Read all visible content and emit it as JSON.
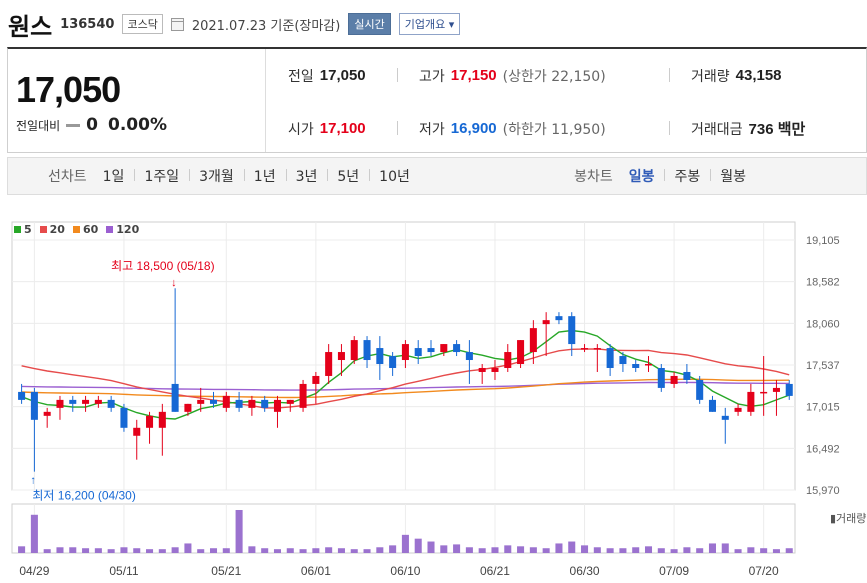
{
  "header": {
    "name": "원스",
    "code": "136540",
    "market": "코스닥",
    "date": "2021.07.23 기준(장마감)",
    "realtime_label": "실시간",
    "overview_label": "기업개요 ▾"
  },
  "quote": {
    "price": "17,050",
    "change_label": "전일대비",
    "change_value": "0",
    "change_pct": "0.00%",
    "prev_close_label": "전일",
    "prev_close": "17,050",
    "open_label": "시가",
    "open": "17,100",
    "high_label": "고가",
    "high": "17,150",
    "upper_limit_label": "(상한가",
    "upper_limit": "22,150)",
    "low_label": "저가",
    "low": "16,900",
    "lower_limit_label": "(하한가",
    "lower_limit": "11,950)",
    "volume_label": "거래량",
    "volume": "43,158",
    "amount_label": "거래대금",
    "amount": "736 백만"
  },
  "period": {
    "line_label": "선차트",
    "line_items": [
      "1일",
      "1주일",
      "3개월",
      "1년",
      "3년",
      "5년",
      "10년"
    ],
    "candle_label": "봉차트",
    "candle_items": [
      "일봉",
      "주봉",
      "월봉"
    ],
    "active_candle": "일봉"
  },
  "legend": [
    {
      "label": "5",
      "color": "#27a727"
    },
    {
      "label": "20",
      "color": "#e64b4b"
    },
    {
      "label": "60",
      "color": "#f28a1e"
    },
    {
      "label": "120",
      "color": "#9b5fd1"
    }
  ],
  "colors": {
    "up": "#e4001a",
    "down": "#1668d4",
    "volume": "#9b72cf"
  },
  "chart_data": {
    "type": "candlestick",
    "y_ticks": [
      "19,105",
      "18,582",
      "18,060",
      "17,537",
      "17,015",
      "16,492",
      "15,970"
    ],
    "ylim": [
      15970,
      19105
    ],
    "x_labels": [
      {
        "label": "04/29",
        "index": 1
      },
      {
        "label": "05/11",
        "index": 8
      },
      {
        "label": "05/21",
        "index": 16
      },
      {
        "label": "06/01",
        "index": 23
      },
      {
        "label": "06/10",
        "index": 30
      },
      {
        "label": "06/21",
        "index": 37
      },
      {
        "label": "06/30",
        "index": 44
      },
      {
        "label": "07/09",
        "index": 51
      },
      {
        "label": "07/20",
        "index": 58
      }
    ],
    "high_annotation": {
      "text": "최고 18,500 (05/18)",
      "index": 12,
      "value": 18500
    },
    "low_annotation": {
      "text": "최저 16,200 (04/30)",
      "index": 1,
      "value": 16200
    },
    "volume_label": "거래량",
    "candles": [
      {
        "o": 17200,
        "h": 17300,
        "l": 17050,
        "c": 17100
      },
      {
        "o": 17200,
        "h": 17250,
        "l": 16200,
        "c": 16850
      },
      {
        "o": 16900,
        "h": 17000,
        "l": 16750,
        "c": 16950
      },
      {
        "o": 17000,
        "h": 17150,
        "l": 16850,
        "c": 17100
      },
      {
        "o": 17100,
        "h": 17150,
        "l": 16950,
        "c": 17050
      },
      {
        "o": 17050,
        "h": 17150,
        "l": 16950,
        "c": 17100
      },
      {
        "o": 17050,
        "h": 17150,
        "l": 17000,
        "c": 17100
      },
      {
        "o": 17100,
        "h": 17150,
        "l": 16950,
        "c": 17000
      },
      {
        "o": 17000,
        "h": 17050,
        "l": 16700,
        "c": 16750
      },
      {
        "o": 16650,
        "h": 16850,
        "l": 16350,
        "c": 16750
      },
      {
        "o": 16750,
        "h": 16950,
        "l": 16550,
        "c": 16900
      },
      {
        "o": 16750,
        "h": 17050,
        "l": 16400,
        "c": 16950
      },
      {
        "o": 17300,
        "h": 18500,
        "l": 16950,
        "c": 16950
      },
      {
        "o": 16950,
        "h": 17050,
        "l": 16900,
        "c": 17050
      },
      {
        "o": 17050,
        "h": 17250,
        "l": 16950,
        "c": 17100
      },
      {
        "o": 17100,
        "h": 17200,
        "l": 17000,
        "c": 17050
      },
      {
        "o": 17000,
        "h": 17200,
        "l": 16950,
        "c": 17150
      },
      {
        "o": 17100,
        "h": 17200,
        "l": 16950,
        "c": 17000
      },
      {
        "o": 17000,
        "h": 17150,
        "l": 16900,
        "c": 17100
      },
      {
        "o": 17100,
        "h": 17150,
        "l": 16950,
        "c": 17000
      },
      {
        "o": 16950,
        "h": 17150,
        "l": 16750,
        "c": 17100
      },
      {
        "o": 17050,
        "h": 17100,
        "l": 16950,
        "c": 17100
      },
      {
        "o": 17000,
        "h": 17350,
        "l": 16950,
        "c": 17300
      },
      {
        "o": 17300,
        "h": 17450,
        "l": 17050,
        "c": 17400
      },
      {
        "o": 17400,
        "h": 17800,
        "l": 17300,
        "c": 17700
      },
      {
        "o": 17600,
        "h": 17800,
        "l": 17400,
        "c": 17700
      },
      {
        "o": 17600,
        "h": 17900,
        "l": 17550,
        "c": 17850
      },
      {
        "o": 17850,
        "h": 17900,
        "l": 17500,
        "c": 17600
      },
      {
        "o": 17750,
        "h": 17900,
        "l": 17350,
        "c": 17550
      },
      {
        "o": 17650,
        "h": 17700,
        "l": 17400,
        "c": 17500
      },
      {
        "o": 17600,
        "h": 17850,
        "l": 17500,
        "c": 17800
      },
      {
        "o": 17750,
        "h": 17850,
        "l": 17550,
        "c": 17650
      },
      {
        "o": 17750,
        "h": 17850,
        "l": 17650,
        "c": 17700
      },
      {
        "o": 17700,
        "h": 17800,
        "l": 17650,
        "c": 17800
      },
      {
        "o": 17800,
        "h": 17850,
        "l": 17650,
        "c": 17700
      },
      {
        "o": 17700,
        "h": 17850,
        "l": 17300,
        "c": 17600
      },
      {
        "o": 17450,
        "h": 17550,
        "l": 17300,
        "c": 17500
      },
      {
        "o": 17450,
        "h": 17600,
        "l": 17350,
        "c": 17500
      },
      {
        "o": 17500,
        "h": 17800,
        "l": 17450,
        "c": 17700
      },
      {
        "o": 17550,
        "h": 17850,
        "l": 17500,
        "c": 17850
      },
      {
        "o": 17700,
        "h": 18100,
        "l": 17550,
        "c": 18000
      },
      {
        "o": 18050,
        "h": 18200,
        "l": 17650,
        "c": 18100
      },
      {
        "o": 18150,
        "h": 18200,
        "l": 18050,
        "c": 18100
      },
      {
        "o": 18150,
        "h": 18200,
        "l": 17650,
        "c": 17800
      },
      {
        "o": 17750,
        "h": 17800,
        "l": 17700,
        "c": 17750
      },
      {
        "o": 17750,
        "h": 17800,
        "l": 17450,
        "c": 17750
      },
      {
        "o": 17750,
        "h": 17800,
        "l": 17400,
        "c": 17500
      },
      {
        "o": 17650,
        "h": 17700,
        "l": 17450,
        "c": 17550
      },
      {
        "o": 17550,
        "h": 17600,
        "l": 17450,
        "c": 17500
      },
      {
        "o": 17550,
        "h": 17650,
        "l": 17450,
        "c": 17550
      },
      {
        "o": 17500,
        "h": 17550,
        "l": 17200,
        "c": 17250
      },
      {
        "o": 17300,
        "h": 17450,
        "l": 17250,
        "c": 17400
      },
      {
        "o": 17450,
        "h": 17550,
        "l": 17300,
        "c": 17350
      },
      {
        "o": 17350,
        "h": 17400,
        "l": 17050,
        "c": 17100
      },
      {
        "o": 17100,
        "h": 17150,
        "l": 16950,
        "c": 16950
      },
      {
        "o": 16900,
        "h": 17000,
        "l": 16550,
        "c": 16850
      },
      {
        "o": 16950,
        "h": 17050,
        "l": 16900,
        "c": 17000
      },
      {
        "o": 16950,
        "h": 17300,
        "l": 16900,
        "c": 17200
      },
      {
        "o": 17200,
        "h": 17650,
        "l": 16900,
        "c": 17200
      },
      {
        "o": 17200,
        "h": 17350,
        "l": 16900,
        "c": 17250
      },
      {
        "o": 17300,
        "h": 17350,
        "l": 17100,
        "c": 17150
      }
    ],
    "volumes": [
      7,
      40,
      4,
      6,
      6,
      5,
      5,
      4,
      6,
      5,
      4,
      4,
      6,
      10,
      4,
      5,
      5,
      45,
      7,
      5,
      4,
      5,
      4,
      5,
      6,
      5,
      4,
      4,
      6,
      8,
      19,
      15,
      12,
      8,
      9,
      6,
      5,
      6,
      8,
      7,
      6,
      5,
      10,
      12,
      8,
      6,
      5,
      5,
      6,
      7,
      5,
      4,
      6,
      5,
      10,
      10,
      4,
      6,
      5,
      4,
      5
    ]
  }
}
